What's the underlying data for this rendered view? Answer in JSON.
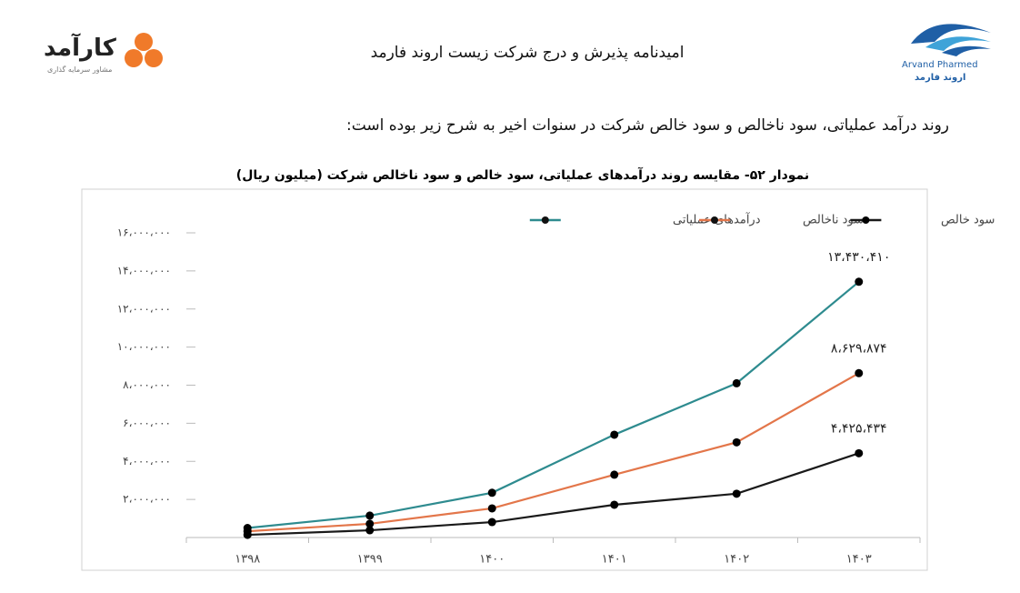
{
  "header": {
    "title": "امیدنامه پذیرش و درج شرکت زیست اروند فارمد",
    "logo_left": {
      "name": "کارآمد",
      "subtitle": "مشاور سرمایه گذاری"
    },
    "logo_right": {
      "name_en": "Arvand Pharmed",
      "name_fa": "اروند فارمد"
    }
  },
  "intro": "روند درآمد عملیاتی، سود ناخالص و سود خالص شرکت در سنوات اخیر به شرح زیر بوده است:",
  "chart_data": {
    "type": "line",
    "title": "نمودار ۵۲- مقایسه روند درآمدهای عملیاتی، سود خالص و سود ناخالص شرکت (میلیون ریال)",
    "categories": [
      "۱۳۹۸",
      "۱۳۹۹",
      "۱۴۰۰",
      "۱۴۰۱",
      "۱۴۰۲",
      "۱۴۰۳"
    ],
    "series": [
      {
        "name": "درآمدهای عملیاتی",
        "color": "#2e8b8f",
        "values": [
          500000,
          1150000,
          2350000,
          5400000,
          8100000,
          13430410
        ],
        "value_labels": [
          null,
          null,
          null,
          null,
          null,
          "۱۳،۴۳۰،۴۱۰"
        ]
      },
      {
        "name": "سود ناخالص",
        "color": "#e3764a",
        "values": [
          330000,
          720000,
          1530000,
          3300000,
          5000000,
          8629874
        ],
        "value_labels": [
          null,
          null,
          null,
          null,
          null,
          "۸،۶۲۹،۸۷۴"
        ]
      },
      {
        "name": "سود خالص",
        "color": "#1a1a1a",
        "values": [
          140000,
          380000,
          810000,
          1720000,
          2300000,
          4425434
        ],
        "value_labels": [
          null,
          null,
          null,
          null,
          null,
          "۴،۴۲۵،۴۳۴"
        ]
      }
    ],
    "ylim": [
      0,
      16000000
    ],
    "yticks": [
      {
        "value": 0,
        "label": "-"
      },
      {
        "value": 2000000,
        "label": "۲،۰۰۰،۰۰۰"
      },
      {
        "value": 4000000,
        "label": "۴،۰۰۰،۰۰۰"
      },
      {
        "value": 6000000,
        "label": "۶،۰۰۰،۰۰۰"
      },
      {
        "value": 8000000,
        "label": "۸،۰۰۰،۰۰۰"
      },
      {
        "value": 10000000,
        "label": "۱۰،۰۰۰،۰۰۰"
      },
      {
        "value": 12000000,
        "label": "۱۲،۰۰۰،۰۰۰"
      },
      {
        "value": 14000000,
        "label": "۱۴،۰۰۰،۰۰۰"
      },
      {
        "value": 16000000,
        "label": "۱۶،۰۰۰،۰۰۰"
      }
    ],
    "grid": false,
    "legend": "top-right"
  }
}
